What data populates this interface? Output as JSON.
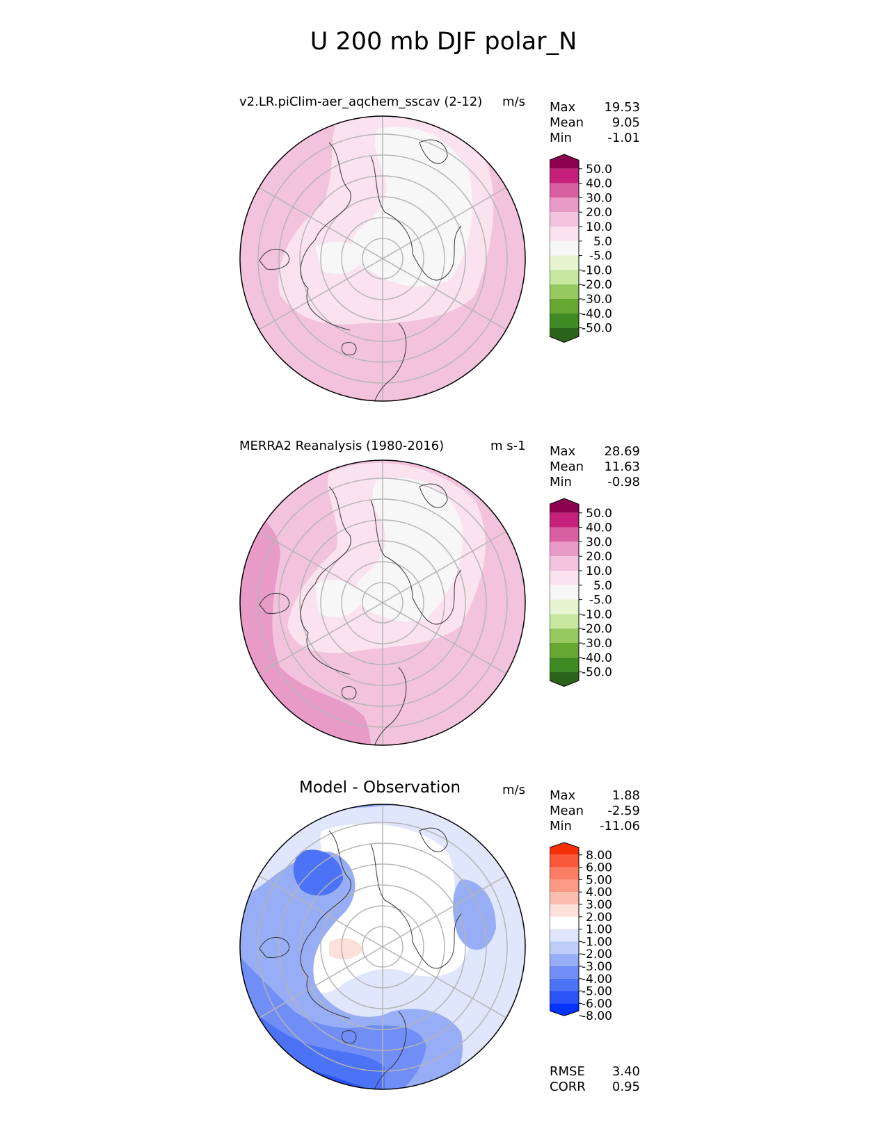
{
  "figure": {
    "title": "U 200 mb DJF polar_N"
  },
  "panels": [
    {
      "name": "test",
      "title": "v2.LR.piClim-aer_aqchem_sscav (2-12)",
      "units": "m/s",
      "stats": [
        {
          "label": "Max",
          "value": "19.53"
        },
        {
          "label": "Mean",
          "value": "9.05"
        },
        {
          "label": "Min",
          "value": "-1.01"
        }
      ],
      "colorbar": {
        "colors": [
          "#2a6419",
          "#3f8a22",
          "#66a732",
          "#96c95f",
          "#c8e7a0",
          "#e6f4d2",
          "#f7f7f7",
          "#fbe2ef",
          "#f3c3de",
          "#e99bc8",
          "#d95fa3",
          "#c4207c",
          "#8c0050"
        ],
        "ticks": [
          "-50.0",
          "-40.0",
          "-30.0",
          "-20.0",
          "-10.0",
          "-5.0",
          "5.0",
          "10.0",
          "20.0",
          "30.0",
          "40.0",
          "50.0"
        ]
      },
      "extra_stats": []
    },
    {
      "name": "reference",
      "title": "MERRA2 Reanalysis (1980-2016)",
      "units": "m s-1",
      "stats": [
        {
          "label": "Max",
          "value": "28.69"
        },
        {
          "label": "Mean",
          "value": "11.63"
        },
        {
          "label": "Min",
          "value": "-0.98"
        }
      ],
      "colorbar": {
        "colors": [
          "#2a6419",
          "#3f8a22",
          "#66a732",
          "#96c95f",
          "#c8e7a0",
          "#e6f4d2",
          "#f7f7f7",
          "#fbe2ef",
          "#f3c3de",
          "#e99bc8",
          "#d95fa3",
          "#c4207c",
          "#8c0050"
        ],
        "ticks": [
          "-50.0",
          "-40.0",
          "-30.0",
          "-20.0",
          "-10.0",
          "-5.0",
          "5.0",
          "10.0",
          "20.0",
          "30.0",
          "40.0",
          "50.0"
        ]
      },
      "extra_stats": []
    },
    {
      "name": "difference",
      "title": "Model - Observation",
      "units": "m/s",
      "stats": [
        {
          "label": "Max",
          "value": "1.88"
        },
        {
          "label": "Mean",
          "value": "-2.59"
        },
        {
          "label": "Min",
          "value": "-11.06"
        }
      ],
      "colorbar": {
        "colors": [
          "#0433ff",
          "#2a54f6",
          "#4c72f5",
          "#708ef5",
          "#97adf6",
          "#bfcdf9",
          "#e0e6fc",
          "#ffffff",
          "#fde0d9",
          "#fbbdb0",
          "#fc9a86",
          "#fb7d64",
          "#f95839",
          "#f32f08"
        ],
        "ticks": [
          "-8.00",
          "-6.00",
          "-5.00",
          "-4.00",
          "-3.00",
          "-2.00",
          "-1.00",
          "1.00",
          "2.00",
          "3.00",
          "4.00",
          "5.00",
          "6.00",
          "8.00"
        ]
      },
      "extra_stats": [
        {
          "label": "RMSE",
          "value": "3.40"
        },
        {
          "label": "CORR",
          "value": "0.95"
        }
      ]
    }
  ],
  "chart_data": [
    {
      "type": "heatmap",
      "projection": "north polar stereographic",
      "title": "v2.LR.piClim-aer_aqchem_sscav (2-12)",
      "units": "m/s",
      "max": 19.53,
      "mean": 9.05,
      "min": -1.01,
      "levels": [
        -50,
        -40,
        -30,
        -20,
        -10,
        -5,
        5,
        10,
        20,
        30,
        40,
        50
      ]
    },
    {
      "type": "heatmap",
      "projection": "north polar stereographic",
      "title": "MERRA2 Reanalysis (1980-2016)",
      "units": "m s-1",
      "max": 28.69,
      "mean": 11.63,
      "min": -0.98,
      "levels": [
        -50,
        -40,
        -30,
        -20,
        -10,
        -5,
        5,
        10,
        20,
        30,
        40,
        50
      ]
    },
    {
      "type": "heatmap",
      "projection": "north polar stereographic",
      "title": "Model - Observation",
      "units": "m/s",
      "max": 1.88,
      "mean": -2.59,
      "min": -11.06,
      "rmse": 3.4,
      "corr": 0.95,
      "levels": [
        -8,
        -6,
        -5,
        -4,
        -3,
        -2,
        -1,
        1,
        2,
        3,
        4,
        5,
        6,
        8
      ]
    }
  ]
}
